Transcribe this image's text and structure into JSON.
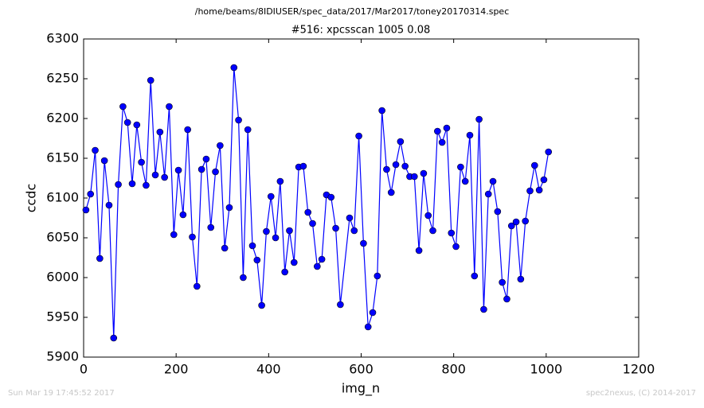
{
  "chart_data": {
    "type": "line",
    "title": "/home/beams/8IDIUSER/spec_data/2017/Mar2017/toney20170314.spec",
    "subtitle": "#516: xpcsscan 1005 0.08",
    "x_label": "img_n",
    "y_label": "ccdc",
    "footer_left": "Sun Mar 19 17:45:52 2017",
    "footer_right": "spec2nexus, (C) 2014-2017",
    "xlim": [
      0,
      1200
    ],
    "xticks": [
      0,
      200,
      400,
      600,
      800,
      1000,
      1200
    ],
    "ylim": [
      5900,
      6300
    ],
    "yticks": [
      5900,
      5950,
      6000,
      6050,
      6100,
      6150,
      6200,
      6250,
      6300
    ],
    "x": [
      5,
      15,
      25,
      35,
      45,
      55,
      65,
      75,
      85,
      95,
      105,
      115,
      125,
      135,
      145,
      155,
      165,
      175,
      185,
      195,
      205,
      215,
      225,
      235,
      245,
      255,
      265,
      275,
      285,
      295,
      305,
      315,
      325,
      335,
      345,
      355,
      365,
      375,
      385,
      395,
      405,
      415,
      425,
      435,
      445,
      455,
      465,
      475,
      485,
      495,
      505,
      515,
      525,
      535,
      545,
      555,
      575,
      585,
      595,
      605,
      615,
      625,
      635,
      645,
      655,
      665,
      675,
      685,
      695,
      705,
      715,
      725,
      735,
      745,
      755,
      765,
      775,
      785,
      795,
      805,
      815,
      825,
      835,
      845,
      855,
      865,
      875,
      885,
      895,
      905,
      915,
      925,
      935,
      945,
      955,
      965,
      975,
      985,
      995,
      1005
    ],
    "series": [
      {
        "color": "#0000ff",
        "values": [
          6085,
          6105,
          6160,
          6024,
          6147,
          6091,
          5924,
          6117,
          6215,
          6195,
          6118,
          6192,
          6145,
          6116,
          6248,
          6129,
          6183,
          6126,
          6215,
          6054,
          6135,
          6079,
          6186,
          6051,
          5989,
          6136,
          6149,
          6063,
          6133,
          6166,
          6037,
          6088,
          6264,
          6198,
          6000,
          6186,
          6040,
          6022,
          5965,
          6058,
          6102,
          6050,
          6121,
          6007,
          6059,
          6019,
          6139,
          6140,
          6082,
          6068,
          6014,
          6023,
          6104,
          6101,
          6062,
          5966,
          6075,
          6059,
          6178,
          6043,
          5938,
          5956,
          6002,
          6210,
          6136,
          6107,
          6142,
          6171,
          6140,
          6127,
          6127,
          6034,
          6131,
          6078,
          6059,
          6184,
          6170,
          6188,
          6056,
          6039,
          6139,
          6121,
          6179,
          6002,
          6199,
          5960,
          6105,
          6121,
          6083,
          5994,
          5973,
          6065,
          6070,
          5998,
          6071,
          6109,
          6141,
          6110,
          6123,
          6158
        ]
      }
    ]
  }
}
